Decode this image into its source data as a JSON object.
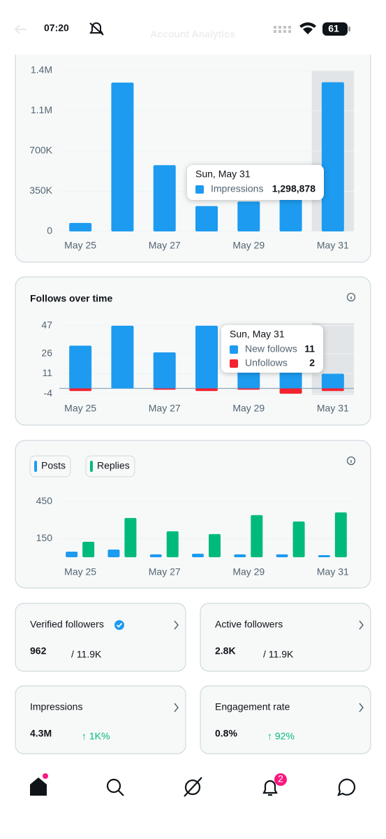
{
  "status_bar": {
    "time": "07:20",
    "battery": "61"
  },
  "header": {
    "title": "Account Analytics"
  },
  "chart_data": [
    {
      "type": "bar",
      "categories": [
        "May 25",
        null,
        "May 27",
        null,
        "May 29",
        null,
        "May 31"
      ],
      "series": [
        {
          "name": "Impressions",
          "color": "#1d9bf0",
          "values": [
            74000,
            1296000,
            577000,
            221000,
            260000,
            300000,
            1298878
          ],
          "value_labels": [
            null,
            null,
            null,
            null,
            null,
            null,
            "1,298,878"
          ]
        }
      ],
      "ylim": [
        0,
        1400000
      ],
      "yticks": [
        0,
        {
          "value": 350000,
          "label": "350K"
        },
        {
          "value": 700000,
          "label": "700K"
        },
        {
          "value": 1050000,
          "label": "1.1M"
        },
        {
          "value": 1400000,
          "label": "1.4M"
        }
      ],
      "grid": true,
      "tooltip": {
        "title": "Sun, May 31"
      }
    },
    {
      "type": "bar",
      "title": "Follows over time",
      "categories": [
        "May 25",
        null,
        "May 27",
        null,
        "May 29",
        null,
        "May 31"
      ],
      "series": [
        {
          "name": "New follows",
          "color": "#1d9bf0",
          "values": [
            32,
            47,
            27,
            47,
            20,
            15,
            11
          ]
        },
        {
          "name": "Unfollows",
          "color": "#f4212e",
          "values": [
            -2,
            0,
            -1,
            -2,
            -1,
            -4,
            -2
          ],
          "value_labels": [
            null,
            null,
            null,
            null,
            null,
            null,
            "2"
          ]
        }
      ],
      "ylim": [
        -5,
        49
      ],
      "yticks": [
        47,
        26,
        11,
        -4
      ],
      "grid": true,
      "tooltip": {
        "title": "Sun, May 31"
      }
    },
    {
      "type": "bar",
      "categories": [
        "May 25",
        null,
        "May 27",
        null,
        "May 29",
        null,
        "May 31"
      ],
      "series": [
        {
          "name": "Posts",
          "color": "#1d9bf0",
          "values": [
            45,
            62,
            23,
            28,
            23,
            23,
            17
          ]
        },
        {
          "name": "Replies",
          "color": "#00ba7c",
          "values": [
            125,
            317,
            210,
            187,
            340,
            289,
            362
          ]
        }
      ],
      "ylim": [
        0,
        480
      ],
      "yticks": [
        450,
        150
      ],
      "grid": true
    }
  ],
  "cards": [
    {
      "label": "Verified followers",
      "value": "962",
      "total": "/ 11.9K"
    },
    {
      "label": "Active followers",
      "value": "2.8K",
      "total": "/ 11.9K"
    },
    {
      "label": "Impressions",
      "value": "4.3M",
      "change": "↑ 1K%"
    },
    {
      "label": "Engagement rate",
      "value": "0.8%",
      "change": "↑ 92%"
    }
  ],
  "nav": {
    "notifications_badge": "2"
  }
}
